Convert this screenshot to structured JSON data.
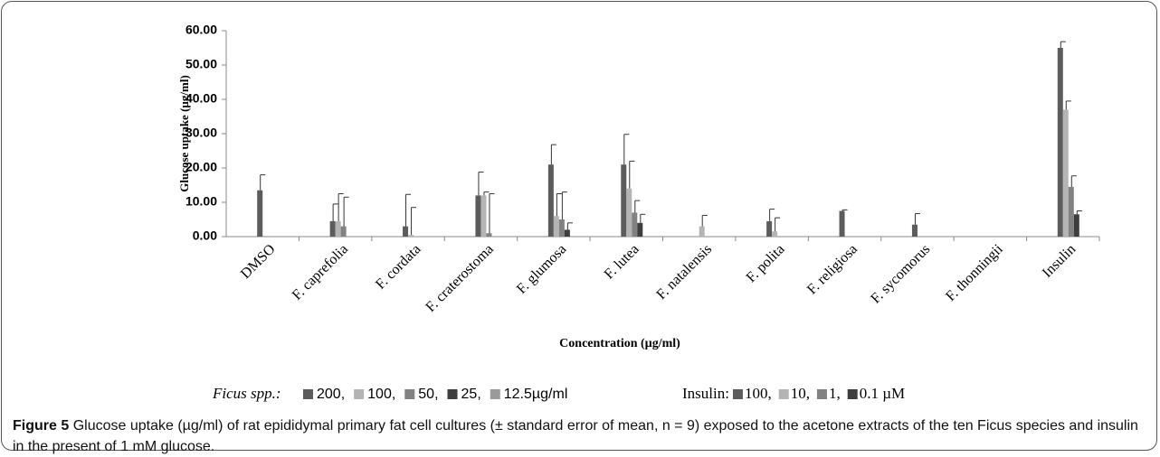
{
  "chart_data": {
    "type": "bar",
    "y_label": "Glucose uptake (µg/ml)",
    "x_label": "Concentration  (µg/ml)",
    "categories": [
      "DMSO",
      "F. caprefolia",
      "F. cordata",
      "F. craterostoma",
      "F. glumosa",
      "F. lutea",
      "F. natalensis",
      "F. polita",
      "F. religiosa",
      "F. sycomorus",
      "F. thonningii",
      "Insulin"
    ],
    "series": [
      {
        "name": "200,",
        "color": "#5c5c5c",
        "values": [
          13.5,
          4.5,
          3,
          12,
          21,
          21,
          null,
          4.5,
          7.5,
          3.5,
          null,
          55
        ],
        "errors": [
          4.5,
          5,
          9.3,
          6.8,
          5.8,
          8.8,
          null,
          3.5,
          0.3,
          3.2,
          null,
          1.8
        ]
      },
      {
        "name": "100,",
        "color": "#b4b4b4",
        "values": [
          null,
          4.5,
          0.5,
          12,
          6,
          14,
          3,
          1.5,
          null,
          null,
          null,
          37
        ],
        "errors": [
          null,
          8,
          8,
          1,
          6.5,
          8,
          3.2,
          4,
          null,
          null,
          null,
          2.5
        ]
      },
      {
        "name": "50,",
        "color": "#828282",
        "values": [
          null,
          3,
          null,
          1,
          5,
          7,
          null,
          null,
          null,
          null,
          null,
          14.5
        ],
        "errors": [
          null,
          8.5,
          null,
          11.5,
          8,
          3.5,
          null,
          null,
          null,
          null,
          null,
          3.2
        ]
      },
      {
        "name": "25,",
        "color": "#3e3e3e",
        "values": [
          null,
          null,
          null,
          null,
          2,
          4,
          null,
          null,
          null,
          null,
          null,
          6.5
        ],
        "errors": [
          null,
          null,
          null,
          null,
          2,
          2.5,
          null,
          null,
          null,
          null,
          null,
          1
        ]
      },
      {
        "name": "12.5µg/ml",
        "color": "#9a9a9a",
        "values": [
          null,
          null,
          null,
          null,
          null,
          null,
          null,
          null,
          null,
          null,
          null,
          null
        ],
        "errors": [
          null,
          null,
          null,
          null,
          null,
          null,
          null,
          null,
          null,
          null,
          null,
          null
        ]
      }
    ],
    "ylim": [
      0,
      60
    ],
    "yticks": [
      {
        "value": 0,
        "label": "0.00"
      },
      {
        "value": 10,
        "label": "10.00"
      },
      {
        "value": 20,
        "label": "20.00"
      },
      {
        "value": 30,
        "label": "30.00"
      },
      {
        "value": 40,
        "label": "40.00"
      },
      {
        "value": 50,
        "label": "50.00"
      },
      {
        "value": 60,
        "label": "60.00"
      }
    ],
    "legend_ficus_label": "Ficus spp.:",
    "legend_insulin_label": "Insulin:",
    "legend_insulin": [
      "100,",
      "10,",
      "1,",
      "0.1 µM"
    ]
  },
  "caption": {
    "label": "Figure 5",
    "text": "Glucose uptake (µg/ml) of rat epididymal primary fat cell cultures (± standard error of mean, n = 9) exposed to the acetone extracts of the ten Ficus species and insulin in the present of 1 mM glucose."
  }
}
